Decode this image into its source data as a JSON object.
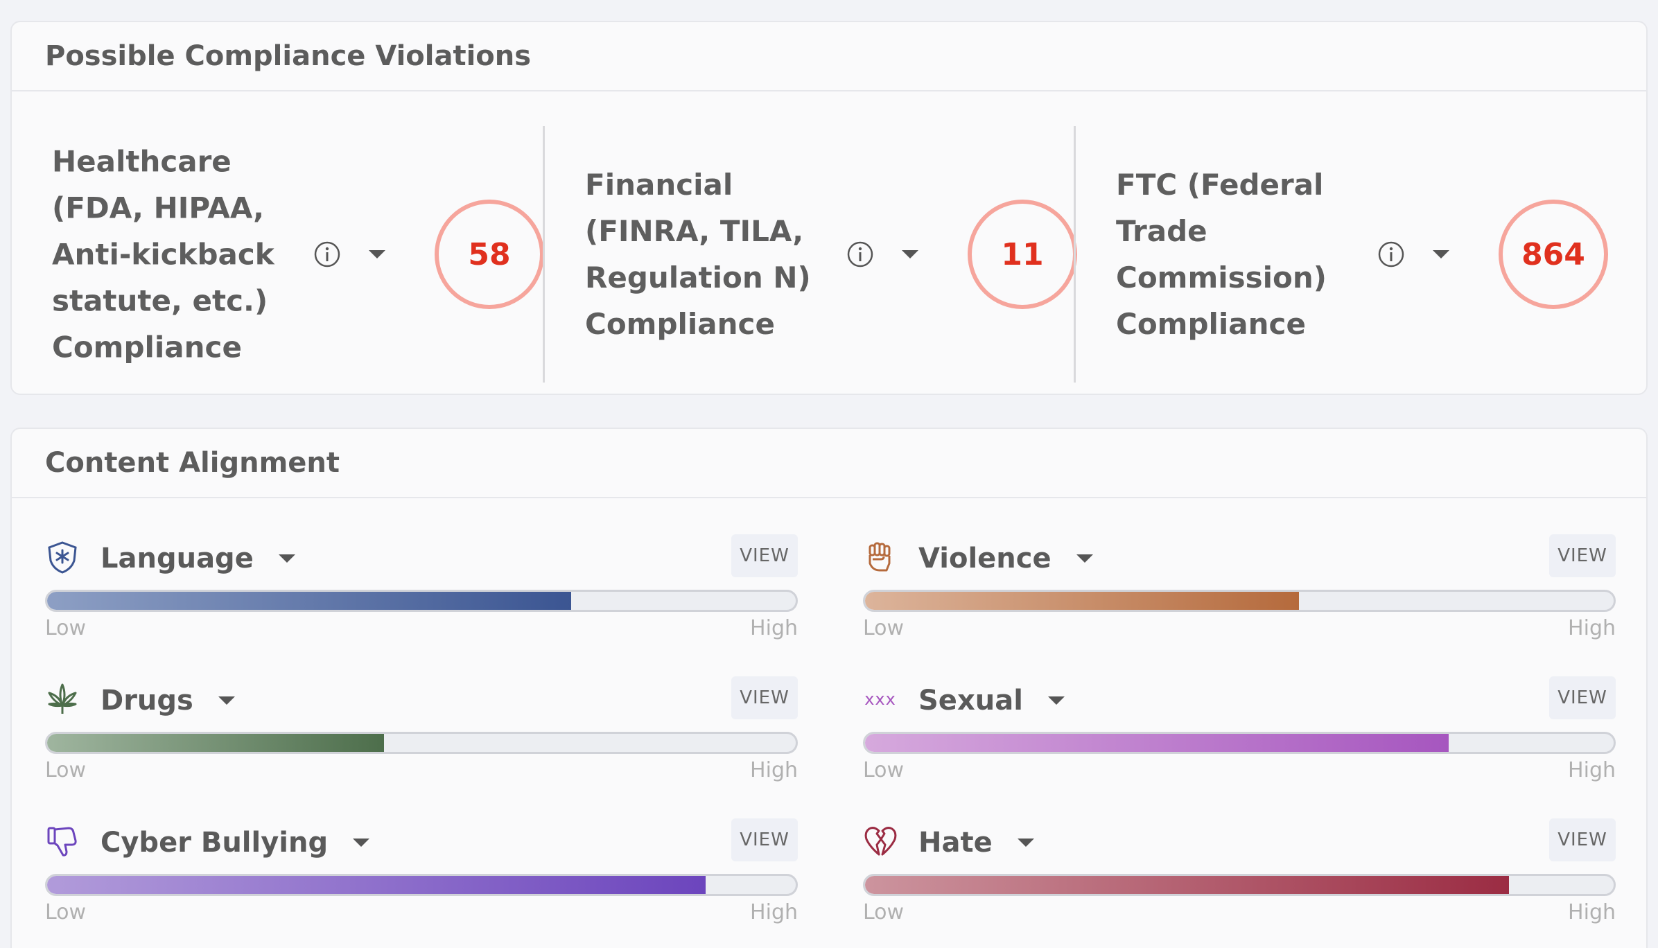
{
  "compliance": {
    "title": "Possible Compliance Violations",
    "items": [
      {
        "label": "Healthcare (FDA, HIPAA, Anti-kickback statute, etc.) Compliance",
        "count": "58"
      },
      {
        "label": "Financial (FINRA, TILA, Regulation N) Compliance",
        "count": "11"
      },
      {
        "label": "FTC (Federal Trade Commission) Compliance",
        "count": "864"
      }
    ]
  },
  "alignment": {
    "title": "Content Alignment",
    "view_label": "VIEW",
    "low_label": "Low",
    "high_label": "High",
    "items": [
      {
        "label": "Language",
        "icon": "shield-asterisk-icon",
        "level": 0.7,
        "color_start": "#8d9fc4",
        "color_end": "#3b5592"
      },
      {
        "label": "Violence",
        "icon": "fist-icon",
        "level": 0.58,
        "color_start": "#dcb49b",
        "color_end": "#b56a3c"
      },
      {
        "label": "Drugs",
        "icon": "cannabis-leaf-icon",
        "level": 0.45,
        "color_start": "#9fb59f",
        "color_end": "#4d6e4b"
      },
      {
        "label": "Sexual",
        "icon": "xxx-icon",
        "icon_text": "xxx",
        "level": 0.78,
        "color_start": "#d6a9dd",
        "color_end": "#a656bf"
      },
      {
        "label": "Cyber Bullying",
        "icon": "thumbs-down-icon",
        "level": 0.88,
        "color_start": "#b19bda",
        "color_end": "#6c45bd"
      },
      {
        "label": "Hate",
        "icon": "broken-heart-icon",
        "level": 0.86,
        "color_start": "#cc949e",
        "color_end": "#9b2c43"
      }
    ]
  }
}
